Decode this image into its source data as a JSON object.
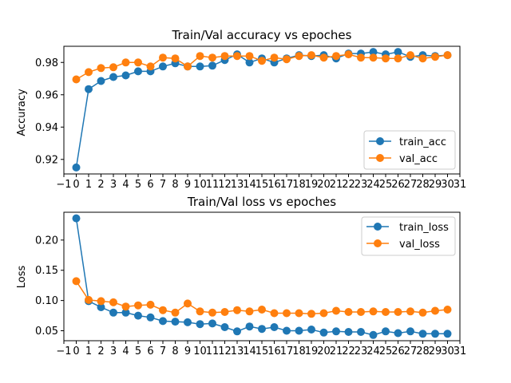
{
  "colors": {
    "train": "#1f77b4",
    "val": "#ff7f0e"
  },
  "chart_data": [
    {
      "type": "line",
      "title": "Train/Val accuracy vs epoches",
      "xlabel": "",
      "ylabel": "Accuracy",
      "xlim": [
        -1,
        31
      ],
      "ylim": [
        0.911,
        0.99
      ],
      "x_ticks": [
        -1,
        0,
        1,
        2,
        3,
        4,
        5,
        6,
        7,
        8,
        9,
        10,
        11,
        12,
        13,
        14,
        15,
        16,
        17,
        18,
        19,
        20,
        21,
        22,
        23,
        24,
        25,
        26,
        27,
        28,
        29,
        30,
        31
      ],
      "y_ticks": [
        0.92,
        0.94,
        0.96,
        0.98
      ],
      "y_tick_labels": [
        "0.92",
        "0.94",
        "0.96",
        "0.98"
      ],
      "legend": "lower right",
      "x": [
        0,
        1,
        2,
        3,
        4,
        5,
        6,
        7,
        8,
        9,
        10,
        11,
        12,
        13,
        14,
        15,
        16,
        17,
        18,
        19,
        20,
        21,
        22,
        23,
        24,
        25,
        26,
        27,
        28,
        29,
        30
      ],
      "series": [
        {
          "name": "train_acc",
          "color": "#1f77b4",
          "values": [
            0.915,
            0.9635,
            0.9685,
            0.971,
            0.972,
            0.9745,
            0.9745,
            0.9775,
            0.9795,
            0.9775,
            0.9775,
            0.978,
            0.9815,
            0.985,
            0.98,
            0.9825,
            0.98,
            0.9825,
            0.9845,
            0.984,
            0.9845,
            0.9825,
            0.9855,
            0.9855,
            0.9865,
            0.985,
            0.9865,
            0.9835,
            0.9845,
            0.984,
            0.9845
          ]
        },
        {
          "name": "val_acc",
          "color": "#ff7f0e",
          "values": [
            0.9695,
            0.974,
            0.9765,
            0.977,
            0.98,
            0.98,
            0.9775,
            0.983,
            0.9825,
            0.9775,
            0.984,
            0.983,
            0.984,
            0.984,
            0.984,
            0.981,
            0.983,
            0.982,
            0.984,
            0.9845,
            0.983,
            0.984,
            0.985,
            0.983,
            0.983,
            0.9825,
            0.9825,
            0.9845,
            0.9825,
            0.9835,
            0.9845
          ]
        }
      ]
    },
    {
      "type": "line",
      "title": "Train/Val loss vs epoches",
      "xlabel": "",
      "ylabel": "Loss",
      "xlim": [
        -1,
        31
      ],
      "ylim": [
        0.0335,
        0.246
      ],
      "x_ticks": [
        -1,
        0,
        1,
        2,
        3,
        4,
        5,
        6,
        7,
        8,
        9,
        10,
        11,
        12,
        13,
        14,
        15,
        16,
        17,
        18,
        19,
        20,
        21,
        22,
        23,
        24,
        25,
        26,
        27,
        28,
        29,
        30,
        31
      ],
      "y_ticks": [
        0.05,
        0.1,
        0.15,
        0.2
      ],
      "y_tick_labels": [
        "0.05",
        "0.10",
        "0.15",
        "0.20"
      ],
      "legend": "upper right",
      "x": [
        0,
        1,
        2,
        3,
        4,
        5,
        6,
        7,
        8,
        9,
        10,
        11,
        12,
        13,
        14,
        15,
        16,
        17,
        18,
        19,
        20,
        21,
        22,
        23,
        24,
        25,
        26,
        27,
        28,
        29,
        30
      ],
      "series": [
        {
          "name": "train_loss",
          "color": "#1f77b4",
          "values": [
            0.236,
            0.099,
            0.089,
            0.08,
            0.08,
            0.075,
            0.072,
            0.066,
            0.065,
            0.064,
            0.061,
            0.062,
            0.056,
            0.049,
            0.057,
            0.053,
            0.056,
            0.05,
            0.05,
            0.052,
            0.047,
            0.049,
            0.048,
            0.048,
            0.043,
            0.049,
            0.046,
            0.049,
            0.045,
            0.045,
            0.045
          ]
        },
        {
          "name": "val_loss",
          "color": "#ff7f0e",
          "values": [
            0.132,
            0.101,
            0.099,
            0.097,
            0.09,
            0.092,
            0.093,
            0.084,
            0.08,
            0.095,
            0.082,
            0.08,
            0.081,
            0.084,
            0.082,
            0.085,
            0.079,
            0.079,
            0.079,
            0.078,
            0.079,
            0.083,
            0.081,
            0.081,
            0.082,
            0.081,
            0.081,
            0.082,
            0.08,
            0.083,
            0.085
          ]
        }
      ]
    }
  ]
}
